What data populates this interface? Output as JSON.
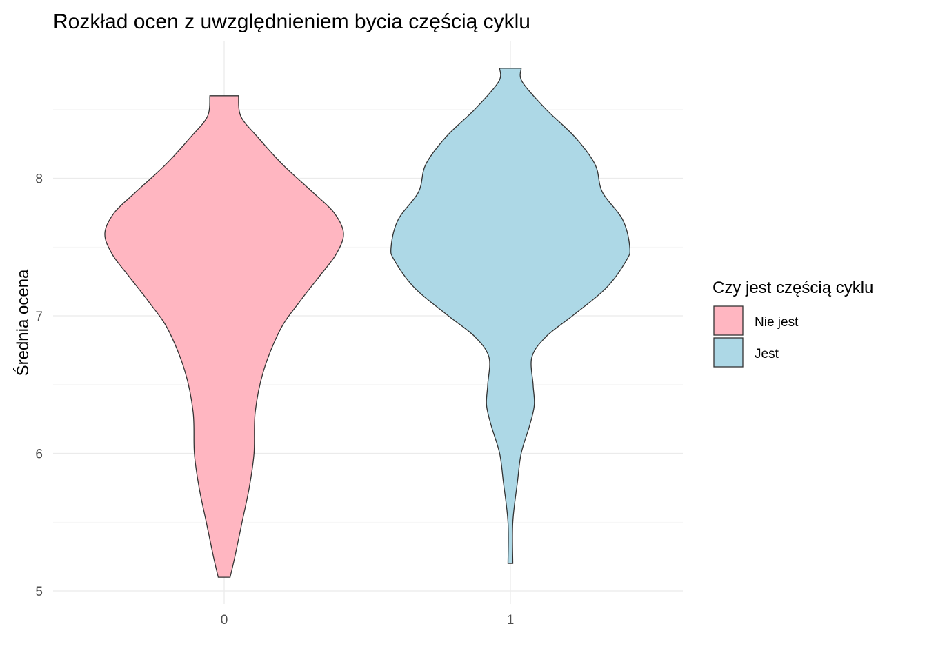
{
  "chart_data": {
    "type": "violin",
    "title": "Rozkład ocen z uwzględnieniem bycia częścią cyklu",
    "xlabel": "",
    "ylabel": "Średnia ocena",
    "categories": [
      "0",
      "1"
    ],
    "ylim": [
      4.9,
      9.0
    ],
    "yticks": [
      5,
      6,
      7,
      8
    ],
    "xticks": [
      "0",
      "1"
    ],
    "grid": true,
    "legend": {
      "title": "Czy jest częścią cyklu",
      "position": "right",
      "entries": [
        {
          "label": "Nie jest",
          "color": "#FFB6C1"
        },
        {
          "label": "Jest",
          "color": "#ADD8E6"
        }
      ]
    },
    "series": [
      {
        "category": "0",
        "color": "#FFB6C1",
        "min": 5.1,
        "max": 8.6,
        "density_profile": [
          {
            "y": 5.1,
            "w": 0.05
          },
          {
            "y": 5.25,
            "w": 0.09
          },
          {
            "y": 5.5,
            "w": 0.15
          },
          {
            "y": 5.75,
            "w": 0.21
          },
          {
            "y": 6.0,
            "w": 0.25
          },
          {
            "y": 6.3,
            "w": 0.26
          },
          {
            "y": 6.6,
            "w": 0.33
          },
          {
            "y": 6.9,
            "w": 0.47
          },
          {
            "y": 7.1,
            "w": 0.63
          },
          {
            "y": 7.3,
            "w": 0.81
          },
          {
            "y": 7.45,
            "w": 0.94
          },
          {
            "y": 7.6,
            "w": 1.0
          },
          {
            "y": 7.75,
            "w": 0.92
          },
          {
            "y": 7.9,
            "w": 0.74
          },
          {
            "y": 8.1,
            "w": 0.49
          },
          {
            "y": 8.3,
            "w": 0.28
          },
          {
            "y": 8.45,
            "w": 0.14
          },
          {
            "y": 8.6,
            "w": 0.12
          }
        ]
      },
      {
        "category": "1",
        "color": "#ADD8E6",
        "min": 5.2,
        "max": 8.8,
        "density_profile": [
          {
            "y": 5.2,
            "w": 0.02
          },
          {
            "y": 5.5,
            "w": 0.02
          },
          {
            "y": 5.8,
            "w": 0.06
          },
          {
            "y": 6.0,
            "w": 0.09
          },
          {
            "y": 6.2,
            "w": 0.16
          },
          {
            "y": 6.35,
            "w": 0.2
          },
          {
            "y": 6.5,
            "w": 0.19
          },
          {
            "y": 6.7,
            "w": 0.18
          },
          {
            "y": 6.85,
            "w": 0.3
          },
          {
            "y": 7.0,
            "w": 0.52
          },
          {
            "y": 7.2,
            "w": 0.8
          },
          {
            "y": 7.4,
            "w": 0.97
          },
          {
            "y": 7.5,
            "w": 1.0
          },
          {
            "y": 7.7,
            "w": 0.94
          },
          {
            "y": 7.9,
            "w": 0.77
          },
          {
            "y": 8.1,
            "w": 0.71
          },
          {
            "y": 8.3,
            "w": 0.54
          },
          {
            "y": 8.5,
            "w": 0.3
          },
          {
            "y": 8.7,
            "w": 0.1
          },
          {
            "y": 8.8,
            "w": 0.09
          }
        ]
      }
    ]
  }
}
